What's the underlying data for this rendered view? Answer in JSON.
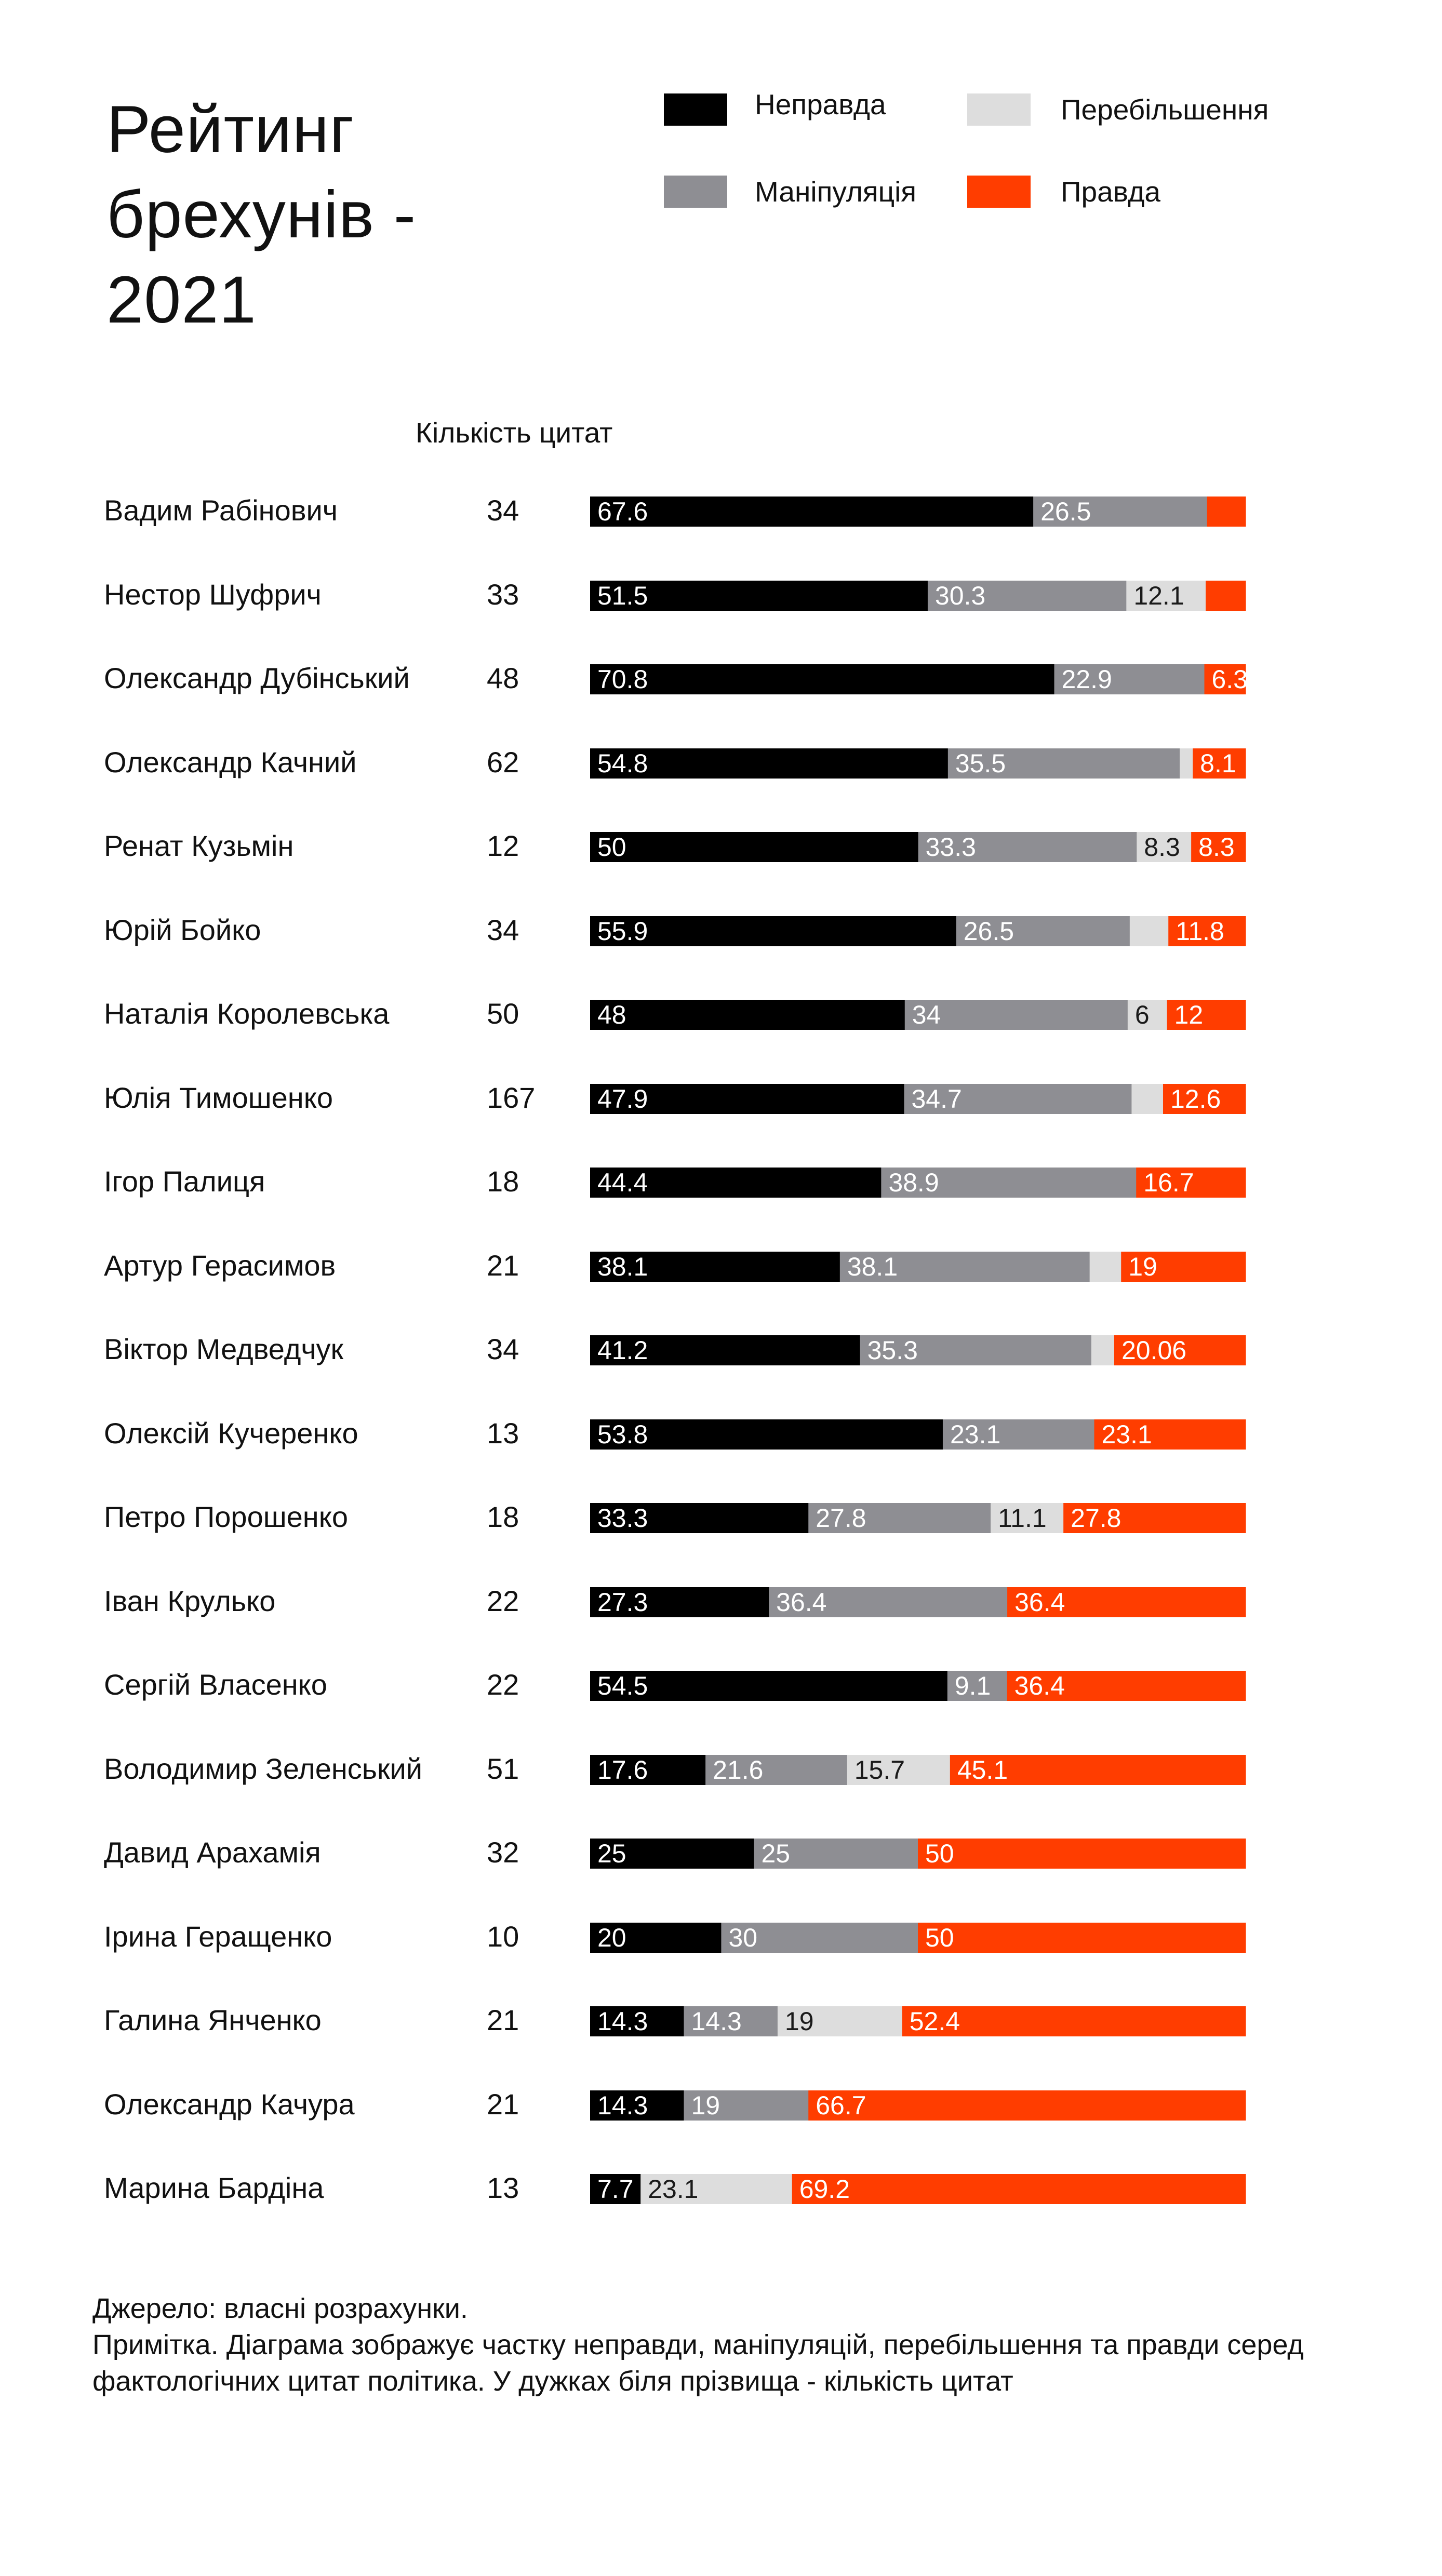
{
  "chart_data": {
    "type": "bar",
    "stacked": true,
    "orientation": "horizontal",
    "title": "Рейтинг брехунів - 2021",
    "count_header": "Кількість цитат",
    "legend": [
      {
        "label": "Неправда",
        "color": "#000000"
      },
      {
        "label": "Перебільшення",
        "color": "#dddddd"
      },
      {
        "label": "Маніпуляція",
        "color": "#8e8e93"
      },
      {
        "label": "Правда",
        "color": "#ff3d00"
      }
    ],
    "legend_placement": "top-right",
    "xlim": [
      0,
      100
    ],
    "series": [
      {
        "name": "Неправда",
        "color": "#000000",
        "label_color": "#ffffff",
        "values": [
          67.6,
          51.5,
          70.8,
          54.8,
          50,
          55.9,
          48,
          47.9,
          44.4,
          38.1,
          41.2,
          53.8,
          33.3,
          27.3,
          54.5,
          17.6,
          25,
          20,
          14.3,
          14.3,
          7.7
        ],
        "labels": [
          "67.6",
          "51.5",
          "70.8",
          "54.8",
          "50",
          "55.9",
          "48",
          "47.9",
          "44.4",
          "38.1",
          "41.2",
          "53.8",
          "33.3",
          "27.3",
          "54.5",
          "17.6",
          "25",
          "20",
          "14.3",
          "14.3",
          "7.7"
        ]
      },
      {
        "name": "Маніпуляція",
        "color": "#8e8e93",
        "label_color": "#ffffff",
        "values": [
          26.5,
          30.3,
          22.9,
          35.5,
          33.3,
          26.5,
          34,
          34.7,
          38.9,
          38.1,
          35.3,
          23.1,
          27.8,
          36.4,
          9.1,
          21.6,
          25,
          30,
          14.3,
          19,
          0
        ],
        "labels": [
          "26.5",
          "30.3",
          "22.9",
          "35.5",
          "33.3",
          "26.5",
          "34",
          "34.7",
          "38.9",
          "38.1",
          "35.3",
          "23.1",
          "27.8",
          "36.4",
          "9.1",
          "21.6",
          "25",
          "30",
          "14.3",
          "19",
          ""
        ]
      },
      {
        "name": "Перебільшення",
        "color": "#dddddd",
        "label_color": "#1a1a1a",
        "values": [
          0,
          12.1,
          0,
          2,
          8.3,
          5.9,
          6,
          4.8,
          0,
          4.8,
          3.5,
          0,
          11.1,
          0,
          0,
          15.7,
          0,
          0,
          19,
          0,
          23.1
        ],
        "labels": [
          "",
          "12.1",
          "",
          "",
          "8.3",
          "",
          "6",
          "",
          "",
          "",
          "",
          "",
          "11.1",
          "",
          "",
          "15.7",
          "",
          "",
          "19",
          "",
          "23.1"
        ]
      },
      {
        "name": "Правда",
        "color": "#ff3d00",
        "label_color": "#ffffff",
        "values": [
          5.9,
          6.1,
          6.3,
          8.1,
          8.3,
          11.8,
          12,
          12.6,
          16.7,
          19,
          20.06,
          23.1,
          27.8,
          36.4,
          36.4,
          45.1,
          50,
          50,
          52.4,
          66.7,
          69.2
        ],
        "labels": [
          "",
          "",
          "6.3",
          "8.1",
          "8.3",
          "11.8",
          "12",
          "12.6",
          "16.7",
          "19",
          "20.06",
          "23.1",
          "27.8",
          "36.4",
          "36.4",
          "45.1",
          "50",
          "50",
          "52.4",
          "66.7",
          "69.2"
        ]
      }
    ],
    "rows": [
      {
        "name": "Вадим Рабінович",
        "count": "34"
      },
      {
        "name": "Нестор Шуфрич",
        "count": "33"
      },
      {
        "name": "Олександр Дубінський",
        "count": "48"
      },
      {
        "name": "Олександр Качний",
        "count": "62"
      },
      {
        "name": "Ренат Кузьмін",
        "count": "12"
      },
      {
        "name": "Юрій Бойко",
        "count": "34"
      },
      {
        "name": "Наталія Королевська",
        "count": "50"
      },
      {
        "name": "Юлія Тимошенко",
        "count": "167"
      },
      {
        "name": "Ігор Палиця",
        "count": "18"
      },
      {
        "name": "Артур Герасимов",
        "count": "21"
      },
      {
        "name": "Віктор Медведчук",
        "count": "34"
      },
      {
        "name": "Олексій Кучеренко",
        "count": "13"
      },
      {
        "name": "Петро Порошенко",
        "count": "18"
      },
      {
        "name": "Іван Крулько",
        "count": "22"
      },
      {
        "name": "Сергій Власенко",
        "count": "22"
      },
      {
        "name": "Володимир Зеленський",
        "count": "51"
      },
      {
        "name": "Давид Арахамія",
        "count": "32"
      },
      {
        "name": "Ірина Геращенко",
        "count": "10"
      },
      {
        "name": "Галина Янченко",
        "count": "21"
      },
      {
        "name": "Олександр Качура",
        "count": "21"
      },
      {
        "name": "Марина Бардіна",
        "count": "13"
      }
    ]
  },
  "footer": {
    "source": "Джерело: власні розрахунки.",
    "note": "Примітка. Діаграма зображує частку неправди, маніпуляцій, перебільшення та правди серед фактологічних цитат політика. У дужках біля прізвища - кількість цитат"
  }
}
